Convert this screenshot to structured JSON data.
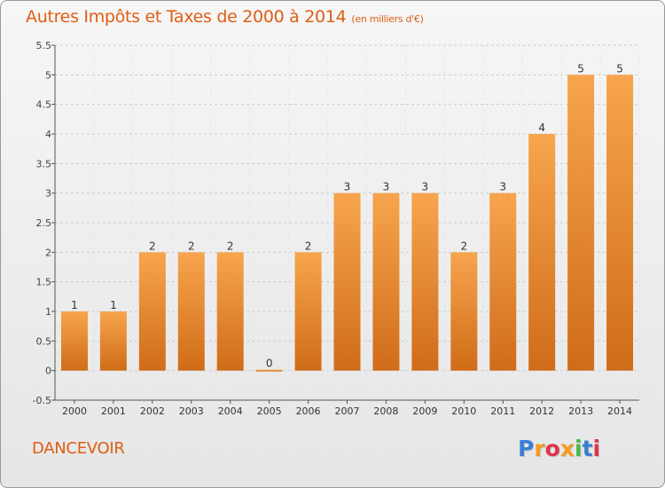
{
  "header": {
    "title": "Autres Impôts et Taxes de 2000 à 2014",
    "subtitle": "(en milliers d'€)"
  },
  "footer": {
    "location": "DANCEVOIR",
    "brand": "Proxiti",
    "brand_colors": [
      "#3a7fd6",
      "#f39a1f",
      "#e0344a",
      "#f39a1f",
      "#4ab84a",
      "#3a7fd6",
      "#e0344a"
    ]
  },
  "colors": {
    "bar_light": "#f7a54e",
    "bar_dark": "#d06c18",
    "accent": "#e05d13",
    "grid": "#cccccc"
  },
  "chart_data": {
    "type": "bar",
    "categories": [
      "2000",
      "2001",
      "2002",
      "2003",
      "2004",
      "2005",
      "2006",
      "2007",
      "2008",
      "2009",
      "2010",
      "2011",
      "2012",
      "2013",
      "2014"
    ],
    "values": [
      1,
      1,
      2,
      2,
      2,
      0,
      2,
      3,
      3,
      3,
      2,
      3,
      4,
      5,
      5
    ],
    "data_labels": [
      "1",
      "1",
      "2",
      "2",
      "2",
      "0",
      "2",
      "3",
      "3",
      "3",
      "2",
      "3",
      "4",
      "5",
      "5"
    ],
    "ylim": [
      -0.5,
      5.5
    ],
    "yticks": [
      -0.5,
      0,
      0.5,
      1,
      1.5,
      2,
      2.5,
      3,
      3.5,
      4,
      4.5,
      5,
      5.5
    ],
    "ytick_labels": [
      "-0.5",
      "0",
      "0.5",
      "1",
      "1.5",
      "2",
      "2.5",
      "3",
      "3.5",
      "4",
      "4.5",
      "5",
      "5.5"
    ],
    "xlabel": "",
    "ylabel": "",
    "grid": "horizontal dashed"
  }
}
